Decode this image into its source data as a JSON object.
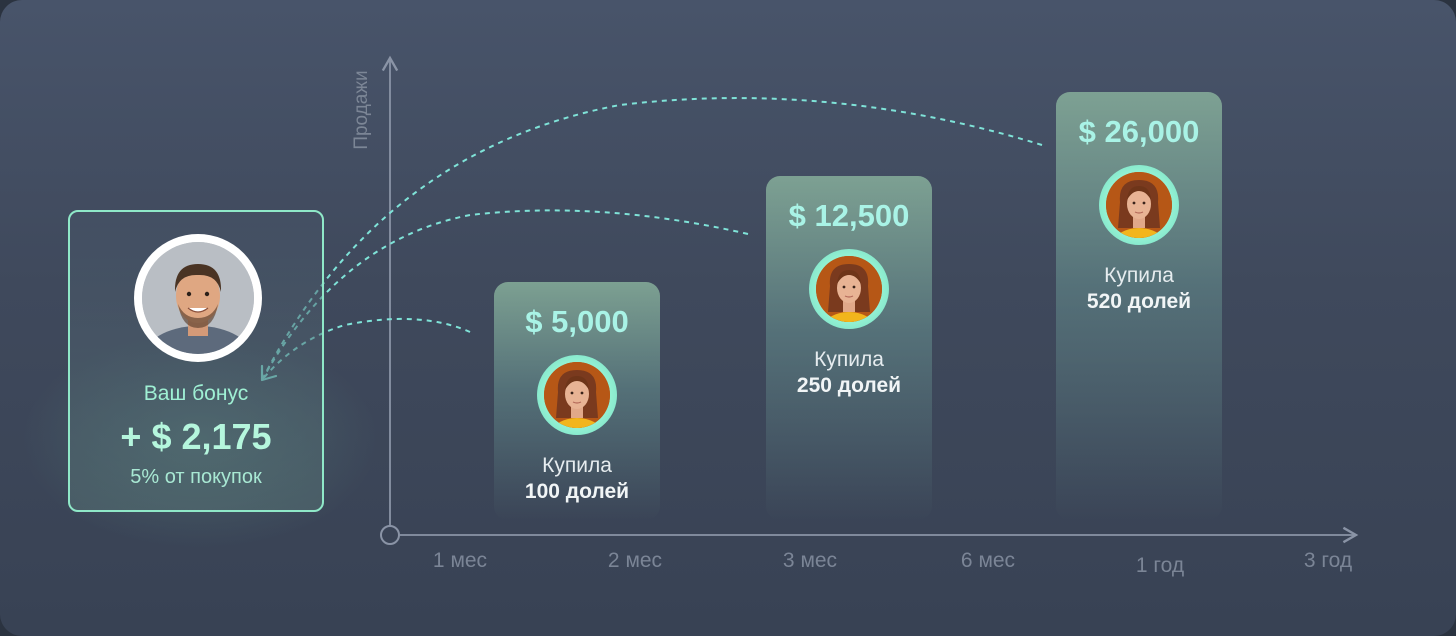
{
  "chart_data": {
    "type": "bar",
    "ylabel": "Продажи",
    "categories": [
      "1 мес",
      "2 мес",
      "3 мес",
      "6 мес",
      "1 год",
      "3 год"
    ],
    "bars": [
      {
        "category": "2 мес",
        "value": 5000,
        "value_label": "$ 5,000",
        "caption": "Купила",
        "shares": "100 долей"
      },
      {
        "category": "3 мес",
        "value": 12500,
        "value_label": "$ 12,500",
        "caption": "Купила",
        "shares": "250 долей"
      },
      {
        "category": "1 год",
        "value": 26000,
        "value_label": "$ 26,000",
        "caption": "Купила",
        "shares": "520 долей"
      }
    ]
  },
  "bonus": {
    "label": "Ваш бонус",
    "amount": "+ $ 2,175",
    "note": "5% от покупок"
  },
  "colors": {
    "accent": "#9ff0d4",
    "value": "#a9f3e6",
    "axis": "#8a94a6",
    "background": "#434d61"
  },
  "icons": {
    "bonus_avatar": "man-portrait-avatar",
    "buyer_avatar": "woman-portrait-avatar"
  }
}
